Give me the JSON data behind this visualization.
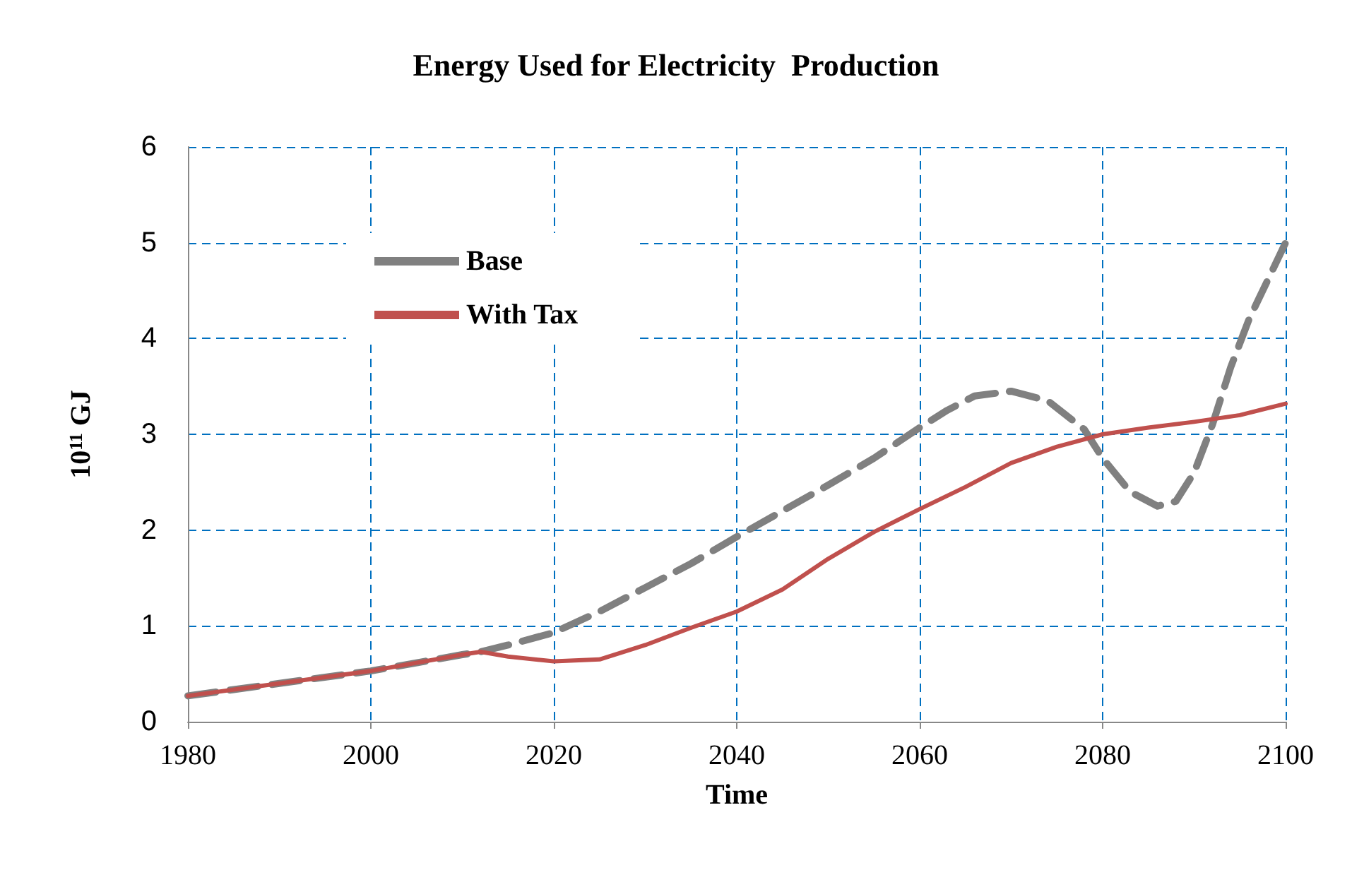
{
  "chart_data": {
    "type": "line",
    "title": "Energy Used for Electricity  Production",
    "xlabel": "Time",
    "ylabel": "10$^{11}$ GJ",
    "xlim": [
      1980,
      2100
    ],
    "xticks": [
      1980,
      2000,
      2020,
      2040,
      2060,
      2080,
      2100
    ],
    "ylim": [
      0,
      6
    ],
    "yticks": [
      0,
      1,
      2,
      3,
      4,
      5,
      6
    ],
    "grid": true,
    "legend": "top left",
    "marker": "none",
    "series": [
      {
        "name": "Base",
        "color": "#808080",
        "line_style": "dashed",
        "x": [
          1980,
          1990,
          2000,
          2010,
          2012,
          2015,
          2020,
          2025,
          2030,
          2035,
          2040,
          2045,
          2050,
          2055,
          2060,
          2063,
          2066,
          2070,
          2074,
          2078,
          2080,
          2083,
          2086,
          2088,
          2090,
          2092,
          2094,
          2096,
          2098,
          2100
        ],
        "values": [
          0.27,
          0.4,
          0.53,
          0.7,
          0.73,
          0.8,
          0.93,
          1.15,
          1.4,
          1.65,
          1.93,
          2.2,
          2.47,
          2.75,
          3.07,
          3.25,
          3.4,
          3.45,
          3.35,
          3.05,
          2.75,
          2.4,
          2.25,
          2.3,
          2.6,
          3.1,
          3.7,
          4.2,
          4.6,
          5.0
        ]
      },
      {
        "name": "With Tax",
        "color": "#c0504d",
        "line_style": "solid",
        "x": [
          1980,
          1990,
          2000,
          2010,
          2012,
          2015,
          2020,
          2025,
          2030,
          2035,
          2040,
          2045,
          2050,
          2055,
          2060,
          2065,
          2070,
          2075,
          2080,
          2085,
          2090,
          2095,
          2100
        ],
        "values": [
          0.27,
          0.4,
          0.53,
          0.7,
          0.73,
          0.68,
          0.63,
          0.65,
          0.8,
          0.98,
          1.15,
          1.38,
          1.7,
          1.98,
          2.22,
          2.45,
          2.7,
          2.87,
          3.0,
          3.07,
          3.13,
          3.2,
          3.32
        ]
      }
    ]
  }
}
